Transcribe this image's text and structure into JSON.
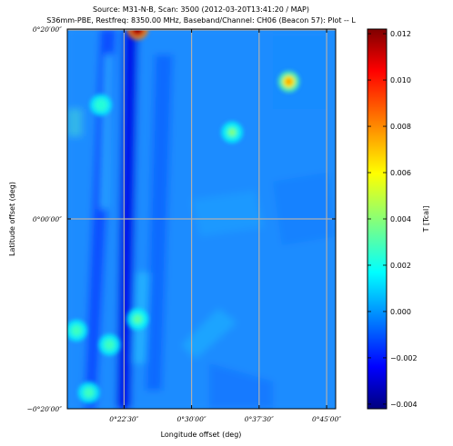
{
  "title_line1": "Source: M31-N-B, Scan: 3500 (2012-03-20T13:41:20 / MAP)",
  "title_line2": "S36mm-PBE, Restfreq: 8350.00 MHz, Baseband/Channel: CH06 (Beacon 57): Plot -- L",
  "chart_data": {
    "type": "heatmap",
    "xlabel": "Longitude offset (deg)",
    "ylabel": "Latitude offset (deg)",
    "colorbar_label": "T [Tcal]",
    "x_ticks": [
      "0°22′30″",
      "0°30′00″",
      "0°37′30″",
      "0°45′00″"
    ],
    "y_ticks": [
      "0°20′00″",
      "0°00′00″",
      "−0°20′00″"
    ],
    "colorbar_ticks": [
      "0.012",
      "0.010",
      "0.008",
      "0.006",
      "0.004",
      "0.002",
      "0.000",
      "−0.002",
      "−0.004"
    ],
    "colorbar_values": [
      0.012,
      0.01,
      0.008,
      0.006,
      0.004,
      0.002,
      0.0,
      -0.002,
      -0.004
    ],
    "colorbar_range": [
      -0.0042,
      0.0122
    ],
    "colormap": "jet",
    "grid": true,
    "features": [
      {
        "lon": 0.4,
        "lat": 0.333,
        "value": 0.0122
      },
      {
        "lon": 0.68,
        "lat": 0.241,
        "value": 0.0075
      },
      {
        "lon": 0.575,
        "lat": 0.152,
        "value": 0.004
      },
      {
        "lon": 0.332,
        "lat": 0.2,
        "value": 0.0025
      },
      {
        "lon": 0.4,
        "lat": -0.176,
        "value": 0.0035
      },
      {
        "lon": 0.287,
        "lat": -0.196,
        "value": 0.003
      },
      {
        "lon": 0.348,
        "lat": -0.221,
        "value": 0.003
      },
      {
        "lon": 0.31,
        "lat": -0.305,
        "value": 0.003
      }
    ]
  }
}
